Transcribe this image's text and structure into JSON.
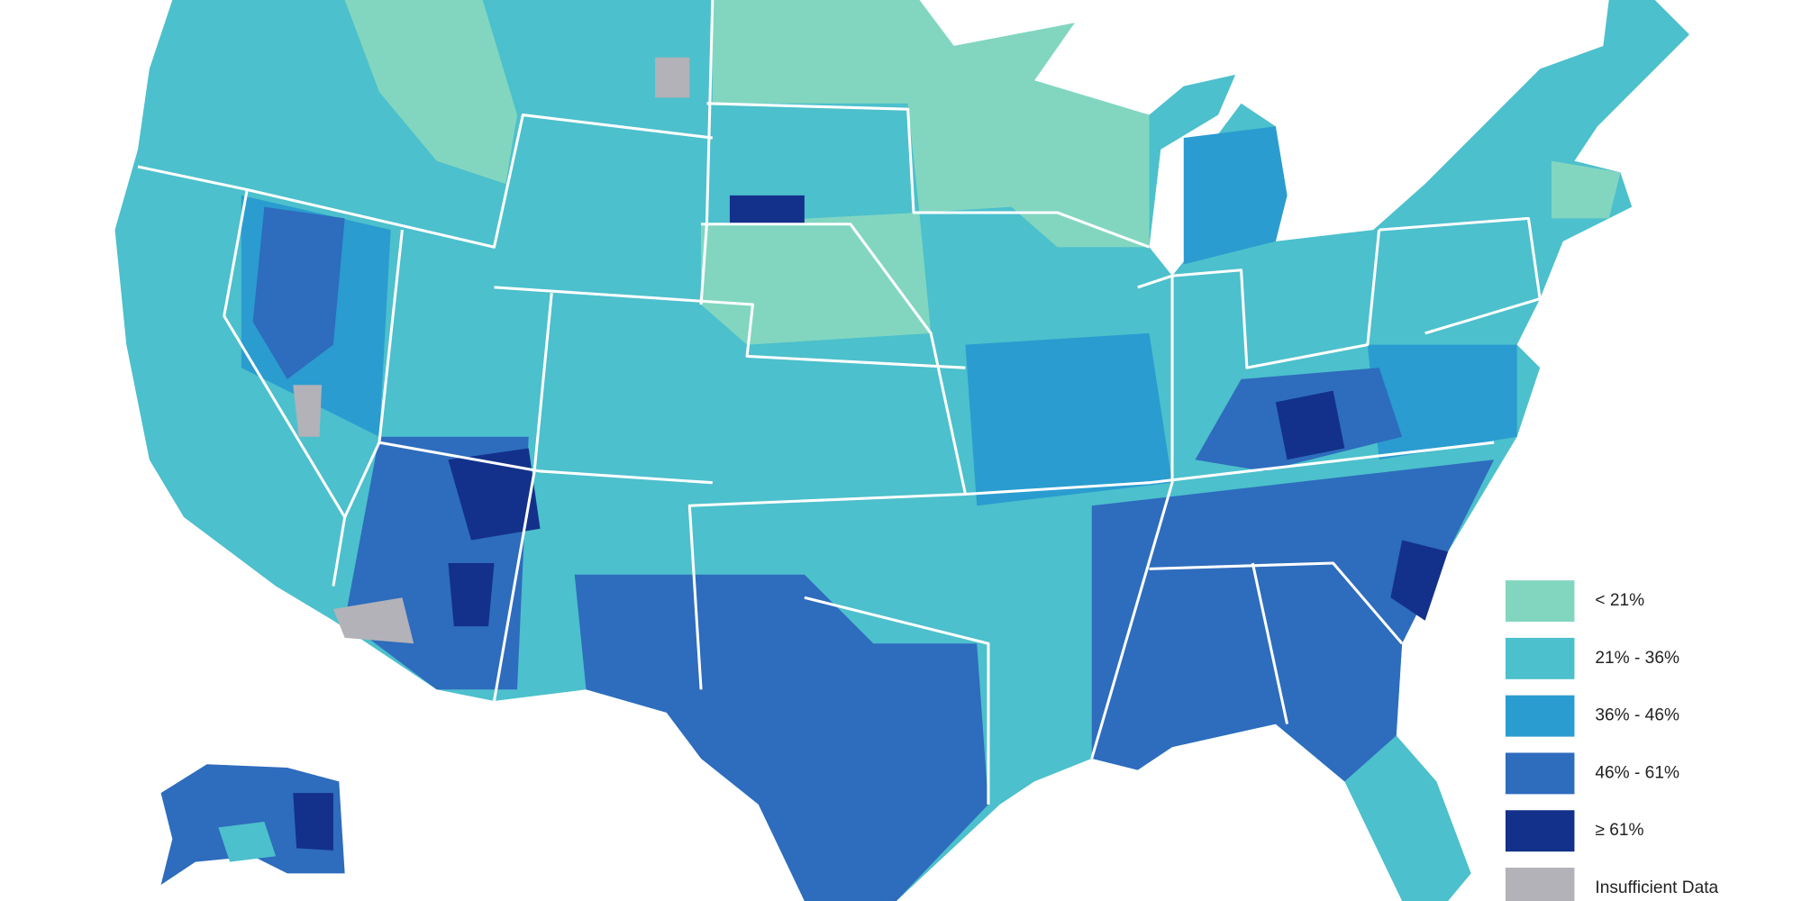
{
  "legend": {
    "items": [
      {
        "label": "< 21%",
        "color": "#82d6c0"
      },
      {
        "label": "21% - 36%",
        "color": "#4cc0cc"
      },
      {
        "label": "36% - 46%",
        "color": "#2a9cd0"
      },
      {
        "label": "46% - 61%",
        "color": "#2e6cbd"
      },
      {
        "label": "≥ 61%",
        "color": "#13318a"
      },
      {
        "label": "Insufficient Data",
        "color": "#b2b2b8"
      }
    ]
  }
}
